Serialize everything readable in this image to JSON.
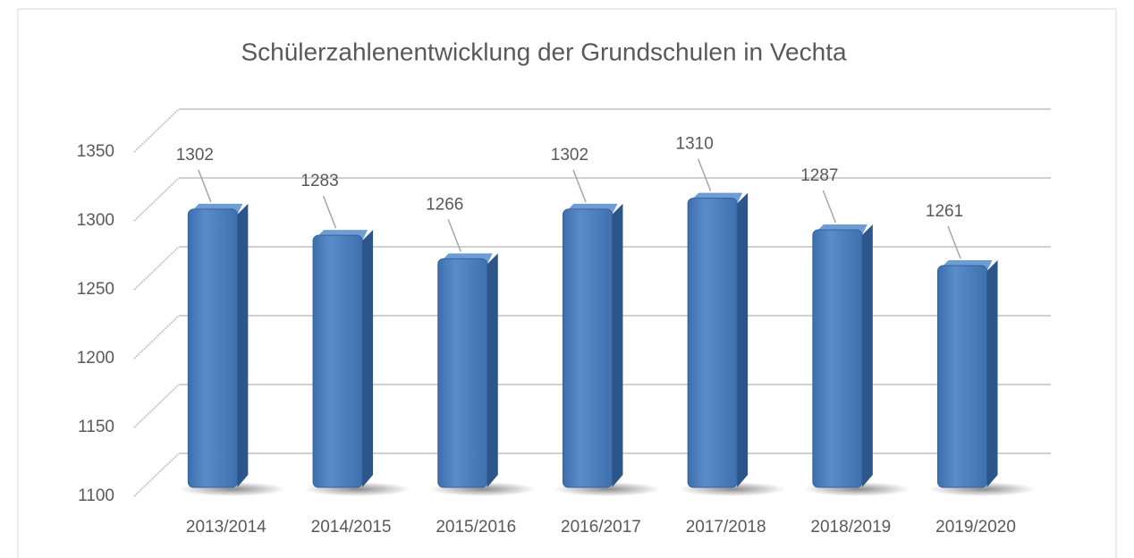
{
  "chart_data": {
    "type": "bar3d",
    "title": "Schülerzahlenentwicklung der Grundschulen in Vechta",
    "categories": [
      "2013/2014",
      "2014/2015",
      "2015/2016",
      "2016/2017",
      "2017/2018",
      "2018/2019",
      "2019/2020"
    ],
    "values": [
      1302,
      1283,
      1266,
      1302,
      1310,
      1287,
      1261
    ],
    "color": "#4f81bd",
    "ylim": [
      1100,
      1350
    ],
    "yticks": [
      1100,
      1150,
      1200,
      1250,
      1300,
      1350
    ],
    "grid": true
  }
}
